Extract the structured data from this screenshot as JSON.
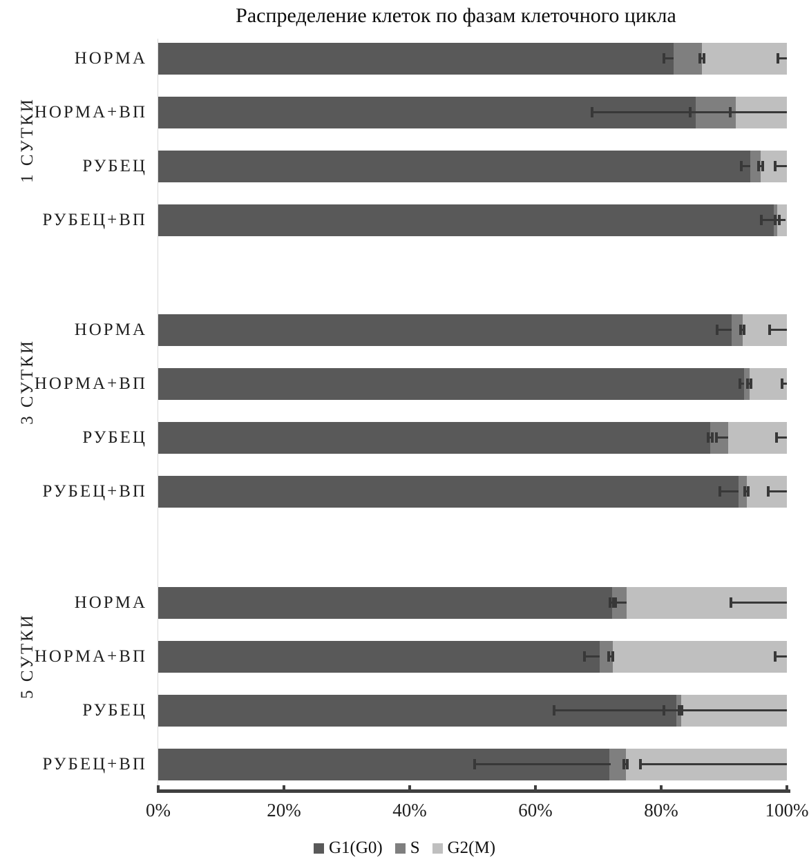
{
  "chart_data": {
    "type": "bar",
    "orientation": "horizontal",
    "stacked": true,
    "grid": false,
    "title": "Распределение клеток по фазам клеточного цикла",
    "xlabel": "",
    "ylabel": "",
    "xlim": [
      0,
      100
    ],
    "xticks": [
      "0%",
      "20%",
      "40%",
      "60%",
      "80%",
      "100%"
    ],
    "legend_position": "bottom",
    "series_names": [
      "G1(G0)",
      "S",
      "G2(M)"
    ],
    "series_colors": {
      "g1": "#595959",
      "s": "#7f7f7f",
      "g2": "#bfbfbf"
    },
    "error_bar_color": "#383838",
    "series": [
      {
        "name": "G1(G0)",
        "values": [
          82.0,
          85.5,
          94.2,
          97.9,
          91.2,
          93.2,
          87.8,
          92.3,
          72.2,
          70.2,
          82.4,
          71.8
        ]
      },
      {
        "name": "S",
        "values": [
          4.5,
          6.4,
          1.6,
          0.6,
          1.8,
          0.9,
          2.9,
          1.3,
          2.3,
          2.1,
          0.8,
          2.6
        ]
      },
      {
        "name": "G2(M)",
        "values": [
          13.5,
          8.1,
          4.2,
          1.5,
          7.0,
          5.9,
          9.3,
          6.4,
          25.5,
          27.7,
          16.8,
          25.6
        ]
      }
    ],
    "groups": [
      {
        "label": "1 СУТКИ",
        "bars": [
          {
            "label": "НОРМА",
            "g1": 82.0,
            "s": 4.5,
            "g2": 13.5,
            "errors": [
              [
                80.4,
                82.0,
                1,
                0
              ],
              [
                86.2,
                86.8,
                1,
                1
              ],
              [
                98.6,
                100,
                1,
                0
              ]
            ]
          },
          {
            "label": "НОРМА+ВП",
            "g1": 85.5,
            "s": 6.4,
            "g2": 8.1,
            "errors": [
              [
                69.0,
                100,
                1,
                0
              ],
              [
                84.6,
                85.5,
                1,
                0
              ],
              [
                91.0,
                91.9,
                1,
                0
              ]
            ]
          },
          {
            "label": "РУБЕЦ",
            "g1": 94.2,
            "s": 1.6,
            "g2": 4.2,
            "errors": [
              [
                92.7,
                94.2,
                1,
                0
              ],
              [
                95.5,
                96.1,
                1,
                1
              ],
              [
                98.1,
                100,
                1,
                0
              ]
            ]
          },
          {
            "label": "РУБЕЦ+ВП",
            "g1": 97.9,
            "s": 0.6,
            "g2": 1.5,
            "errors": [
              [
                95.9,
                99.8,
                1,
                0
              ],
              [
                98.1,
                98.8,
                1,
                1
              ]
            ]
          }
        ]
      },
      {
        "label": "3 СУТКИ",
        "bars": [
          {
            "label": "НОРМА",
            "g1": 91.2,
            "s": 1.8,
            "g2": 7.0,
            "errors": [
              [
                88.9,
                91.2,
                1,
                0
              ],
              [
                92.6,
                93.2,
                1,
                1
              ],
              [
                97.3,
                100,
                1,
                0
              ]
            ]
          },
          {
            "label": "НОРМА+ВП",
            "g1": 93.2,
            "s": 0.9,
            "g2": 5.9,
            "errors": [
              [
                92.5,
                93.2,
                1,
                0
              ],
              [
                93.7,
                94.3,
                1,
                1
              ],
              [
                99.2,
                100,
                1,
                0
              ]
            ]
          },
          {
            "label": "РУБЕЦ",
            "g1": 87.8,
            "s": 2.9,
            "g2": 9.3,
            "errors": [
              [
                87.5,
                88.1,
                1,
                1
              ],
              [
                88.8,
                90.7,
                1,
                0
              ],
              [
                98.4,
                100,
                1,
                0
              ]
            ]
          },
          {
            "label": "РУБЕЦ+ВП",
            "g1": 92.3,
            "s": 1.3,
            "g2": 6.4,
            "errors": [
              [
                89.3,
                92.3,
                1,
                0
              ],
              [
                93.3,
                93.9,
                1,
                1
              ],
              [
                97.0,
                100,
                1,
                0
              ]
            ]
          }
        ]
      },
      {
        "label": "5 СУТКИ",
        "bars": [
          {
            "label": "НОРМА",
            "g1": 72.2,
            "s": 2.3,
            "g2": 25.5,
            "errors": [
              [
                71.9,
                72.4,
                1,
                1
              ],
              [
                72.7,
                74.5,
                1,
                0
              ],
              [
                91.1,
                100,
                1,
                0
              ]
            ]
          },
          {
            "label": "НОРМА+ВП",
            "g1": 70.2,
            "s": 2.1,
            "g2": 27.7,
            "errors": [
              [
                67.8,
                70.2,
                1,
                0
              ],
              [
                71.7,
                72.3,
                1,
                1
              ],
              [
                98.1,
                100,
                1,
                0
              ]
            ]
          },
          {
            "label": "РУБЕЦ",
            "g1": 82.4,
            "s": 0.8,
            "g2": 16.8,
            "errors": [
              [
                63.0,
                100,
                1,
                0
              ],
              [
                80.4,
                80.4,
                1,
                0
              ],
              [
                82.9,
                83.3,
                1,
                1
              ]
            ]
          },
          {
            "label": "РУБЕЦ+ВП",
            "g1": 71.8,
            "s": 2.6,
            "g2": 25.6,
            "errors": [
              [
                50.3,
                72.0,
                1,
                0
              ],
              [
                74.1,
                74.6,
                1,
                1
              ],
              [
                76.7,
                100,
                1,
                0
              ]
            ]
          }
        ]
      }
    ]
  }
}
